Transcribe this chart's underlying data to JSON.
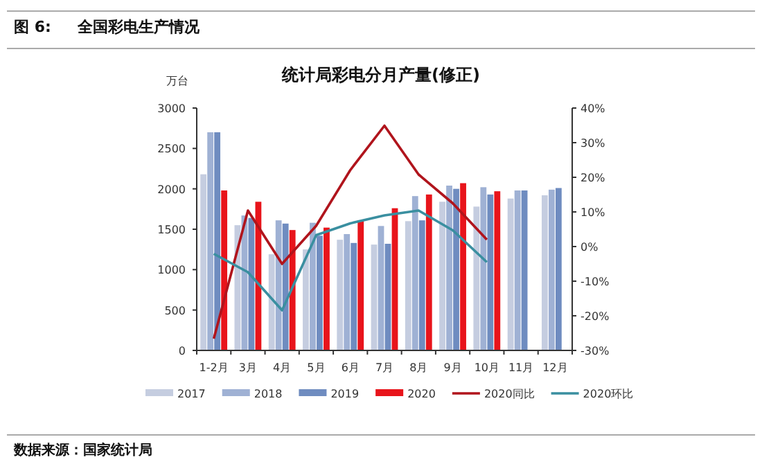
{
  "chart_data": {
    "type": "bar",
    "title": "统计局彩电分月产量(修正)",
    "ylabel": "万台",
    "categories": [
      "1-2月",
      "3月",
      "4月",
      "5月",
      "6月",
      "7月",
      "8月",
      "9月",
      "10月",
      "11月",
      "12月"
    ],
    "series": [
      {
        "name": "2017",
        "color": "#c5cde0",
        "values": [
          2180,
          1550,
          1190,
          1250,
          1370,
          1310,
          1600,
          1840,
          1780,
          1880,
          1920
        ]
      },
      {
        "name": "2018",
        "color": "#9fb1d4",
        "values": [
          2700,
          1670,
          1610,
          1580,
          1440,
          1540,
          1910,
          2040,
          2020,
          1980,
          1990
        ]
      },
      {
        "name": "2019",
        "color": "#6f8cc0",
        "values": [
          2700,
          1640,
          1570,
          1420,
          1330,
          1320,
          1610,
          2000,
          1930,
          1980,
          2010
        ]
      },
      {
        "name": "2020",
        "color": "#e8141b",
        "values": [
          1980,
          1840,
          1490,
          1520,
          1610,
          1760,
          1930,
          2070,
          1970,
          null,
          null
        ]
      },
      {
        "name": "2020同比",
        "type": "line",
        "axis": "y2",
        "color": "#b0141c",
        "values": [
          -26.6,
          10.4,
          -5.0,
          6.0,
          22.1,
          34.9,
          20.8,
          12.5,
          2.0,
          null,
          null
        ]
      },
      {
        "name": "2020环比",
        "type": "line",
        "axis": "y2",
        "color": "#3a8fa0",
        "values": [
          -2.1,
          -7.4,
          -18.4,
          3.3,
          6.7,
          9.0,
          10.4,
          4.7,
          -4.5,
          null,
          null
        ]
      }
    ],
    "ylim": [
      0,
      3000
    ],
    "yticks": [
      0,
      500,
      1000,
      1500,
      2000,
      2500,
      3000
    ],
    "y2lim": [
      -30,
      40
    ],
    "y2ticks": [
      {
        "value": -30,
        "label": "-30%"
      },
      {
        "value": -20,
        "label": "-20%"
      },
      {
        "value": -10,
        "label": "-10%"
      },
      {
        "value": 0,
        "label": "0%"
      },
      {
        "value": 10,
        "label": "10%"
      },
      {
        "value": 20,
        "label": "20%"
      },
      {
        "value": 30,
        "label": "30%"
      },
      {
        "value": 40,
        "label": "40%"
      }
    ],
    "legend": "bottom",
    "grid": false,
    "annotations": [
      "图 6:",
      "全国彩电生产情况",
      "数据来源：国家统计局"
    ]
  }
}
